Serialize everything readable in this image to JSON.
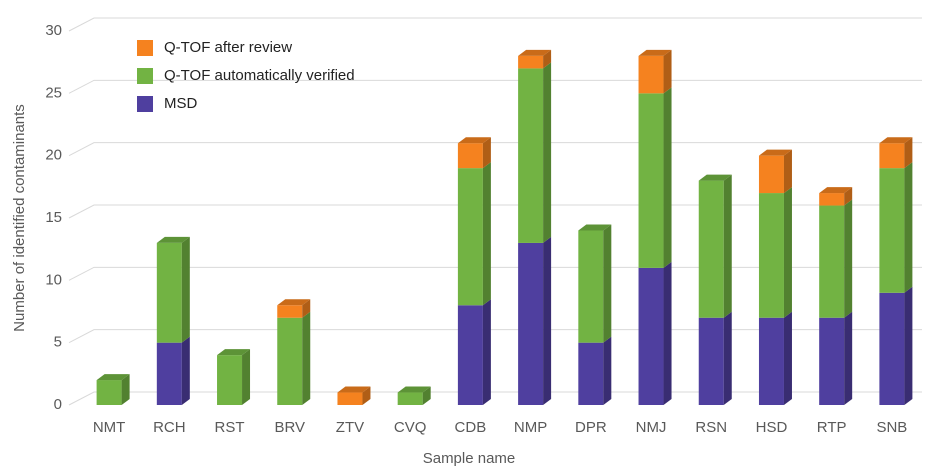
{
  "chart_data": {
    "type": "bar",
    "stacked": true,
    "x_label": "Sample name",
    "y_label": "Number of identified contaminants",
    "categories": [
      "NMT",
      "RCH",
      "RST",
      "BRV",
      "ZTV",
      "CVQ",
      "CDB",
      "NMP",
      "DPR",
      "NMJ",
      "RSN",
      "HSD",
      "RTP",
      "SNB"
    ],
    "series": [
      {
        "name": "MSD",
        "color": "#4f3f9f",
        "values": [
          0,
          5,
          0,
          0,
          0,
          0,
          8,
          13,
          5,
          11,
          7,
          7,
          7,
          9
        ]
      },
      {
        "name": "Q-TOF automatically verified",
        "color": "#72b343",
        "values": [
          2,
          8,
          4,
          7,
          0,
          1,
          11,
          14,
          9,
          14,
          11,
          10,
          9,
          10
        ]
      },
      {
        "name": "Q-TOF after review",
        "color": "#f5821f",
        "values": [
          0,
          0,
          0,
          1,
          1,
          0,
          2,
          1,
          0,
          3,
          0,
          3,
          1,
          2
        ]
      }
    ],
    "ylim": [
      0,
      30
    ],
    "yticks": [
      0,
      5,
      10,
      15,
      20,
      25,
      30
    ],
    "grid": true,
    "legend": "top-left"
  }
}
